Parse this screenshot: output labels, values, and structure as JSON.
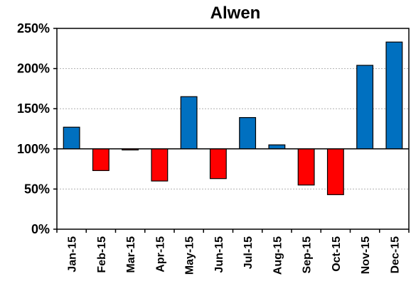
{
  "chart_data": {
    "type": "bar",
    "title": "Alwen",
    "xlabel": "",
    "ylabel": "",
    "categories": [
      "Jan-15",
      "Feb-15",
      "Mar-15",
      "Apr-15",
      "May-15",
      "Jun-15",
      "Jul-15",
      "Aug-15",
      "Sep-15",
      "Oct-15",
      "Nov-15",
      "Dec-15"
    ],
    "values": [
      127,
      73,
      99,
      60,
      165,
      63,
      139,
      105,
      55,
      43,
      204,
      233
    ],
    "value_unit": "%",
    "ylim": [
      0,
      250
    ],
    "yticks": [
      "0%",
      "50%",
      "100%",
      "150%",
      "200%",
      "250%"
    ],
    "baseline": 100,
    "grid": true,
    "legend": "none",
    "colors": {
      "above": "#0070C0",
      "below": "#FF0000"
    }
  }
}
